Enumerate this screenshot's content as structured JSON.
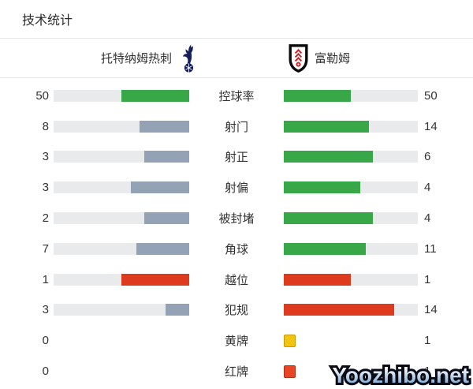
{
  "title": "技术统计",
  "header": {
    "home_team": "托特纳姆热刺",
    "away_team": "富勒姆",
    "home_logo": "tottenham-crest",
    "away_logo": "fulham-crest"
  },
  "rows": [
    {
      "label": "控球率",
      "home": {
        "value": "50",
        "type": "bar",
        "pct": 50,
        "color": "green"
      },
      "away": {
        "value": "50",
        "type": "bar",
        "pct": 50,
        "color": "green"
      }
    },
    {
      "label": "射门",
      "home": {
        "value": "8",
        "type": "bar",
        "pct": 36.4,
        "color": "slate"
      },
      "away": {
        "value": "14",
        "type": "bar",
        "pct": 63.6,
        "color": "green"
      }
    },
    {
      "label": "射正",
      "home": {
        "value": "3",
        "type": "bar",
        "pct": 33.3,
        "color": "slate"
      },
      "away": {
        "value": "6",
        "type": "bar",
        "pct": 66.7,
        "color": "green"
      }
    },
    {
      "label": "射偏",
      "home": {
        "value": "3",
        "type": "bar",
        "pct": 42.9,
        "color": "slate"
      },
      "away": {
        "value": "4",
        "type": "bar",
        "pct": 57.1,
        "color": "green"
      }
    },
    {
      "label": "被封堵",
      "home": {
        "value": "2",
        "type": "bar",
        "pct": 33.3,
        "color": "slate"
      },
      "away": {
        "value": "4",
        "type": "bar",
        "pct": 66.7,
        "color": "green"
      }
    },
    {
      "label": "角球",
      "home": {
        "value": "7",
        "type": "bar",
        "pct": 38.9,
        "color": "slate"
      },
      "away": {
        "value": "11",
        "type": "bar",
        "pct": 61.1,
        "color": "green"
      }
    },
    {
      "label": "越位",
      "home": {
        "value": "1",
        "type": "bar",
        "pct": 50,
        "color": "red"
      },
      "away": {
        "value": "1",
        "type": "bar",
        "pct": 50,
        "color": "red"
      }
    },
    {
      "label": "犯规",
      "home": {
        "value": "3",
        "type": "bar",
        "pct": 17.6,
        "color": "slate"
      },
      "away": {
        "value": "14",
        "type": "bar",
        "pct": 82.4,
        "color": "red"
      }
    },
    {
      "label": "黄牌",
      "home": {
        "value": "0",
        "type": "empty"
      },
      "away": {
        "value": "1",
        "type": "card",
        "color": "yellow_card"
      }
    },
    {
      "label": "红牌",
      "home": {
        "value": "0",
        "type": "empty"
      },
      "away": {
        "value": "1",
        "type": "card",
        "color": "red_card"
      }
    }
  ],
  "watermark": "Yoozhibo.net",
  "colors": {
    "green": "#38a748",
    "slate": "#93a2b4",
    "red": "#de3a1e",
    "track": "#e9eaeb",
    "yellow_card": "#f3c40f",
    "yellow_card_border": "#c39b00",
    "red_card": "#e84526",
    "red_card_border": "#b02c12",
    "divider": "#e6e6e6",
    "text": "#333333"
  },
  "chart_data": {
    "type": "bar",
    "title": "技术统计",
    "orientation": "horizontal-paired",
    "categories": [
      "控球率",
      "射门",
      "射正",
      "射偏",
      "被封堵",
      "角球",
      "越位",
      "犯规",
      "黄牌",
      "红牌"
    ],
    "series": [
      {
        "name": "托特纳姆热刺",
        "values": [
          50,
          8,
          3,
          3,
          2,
          7,
          1,
          3,
          0,
          0
        ]
      },
      {
        "name": "富勒姆",
        "values": [
          50,
          14,
          6,
          4,
          4,
          11,
          1,
          14,
          1,
          1
        ]
      }
    ],
    "legend_position": "top",
    "grid": false,
    "bar_scale": "each bar length = value / (home value + away value) of its row"
  }
}
